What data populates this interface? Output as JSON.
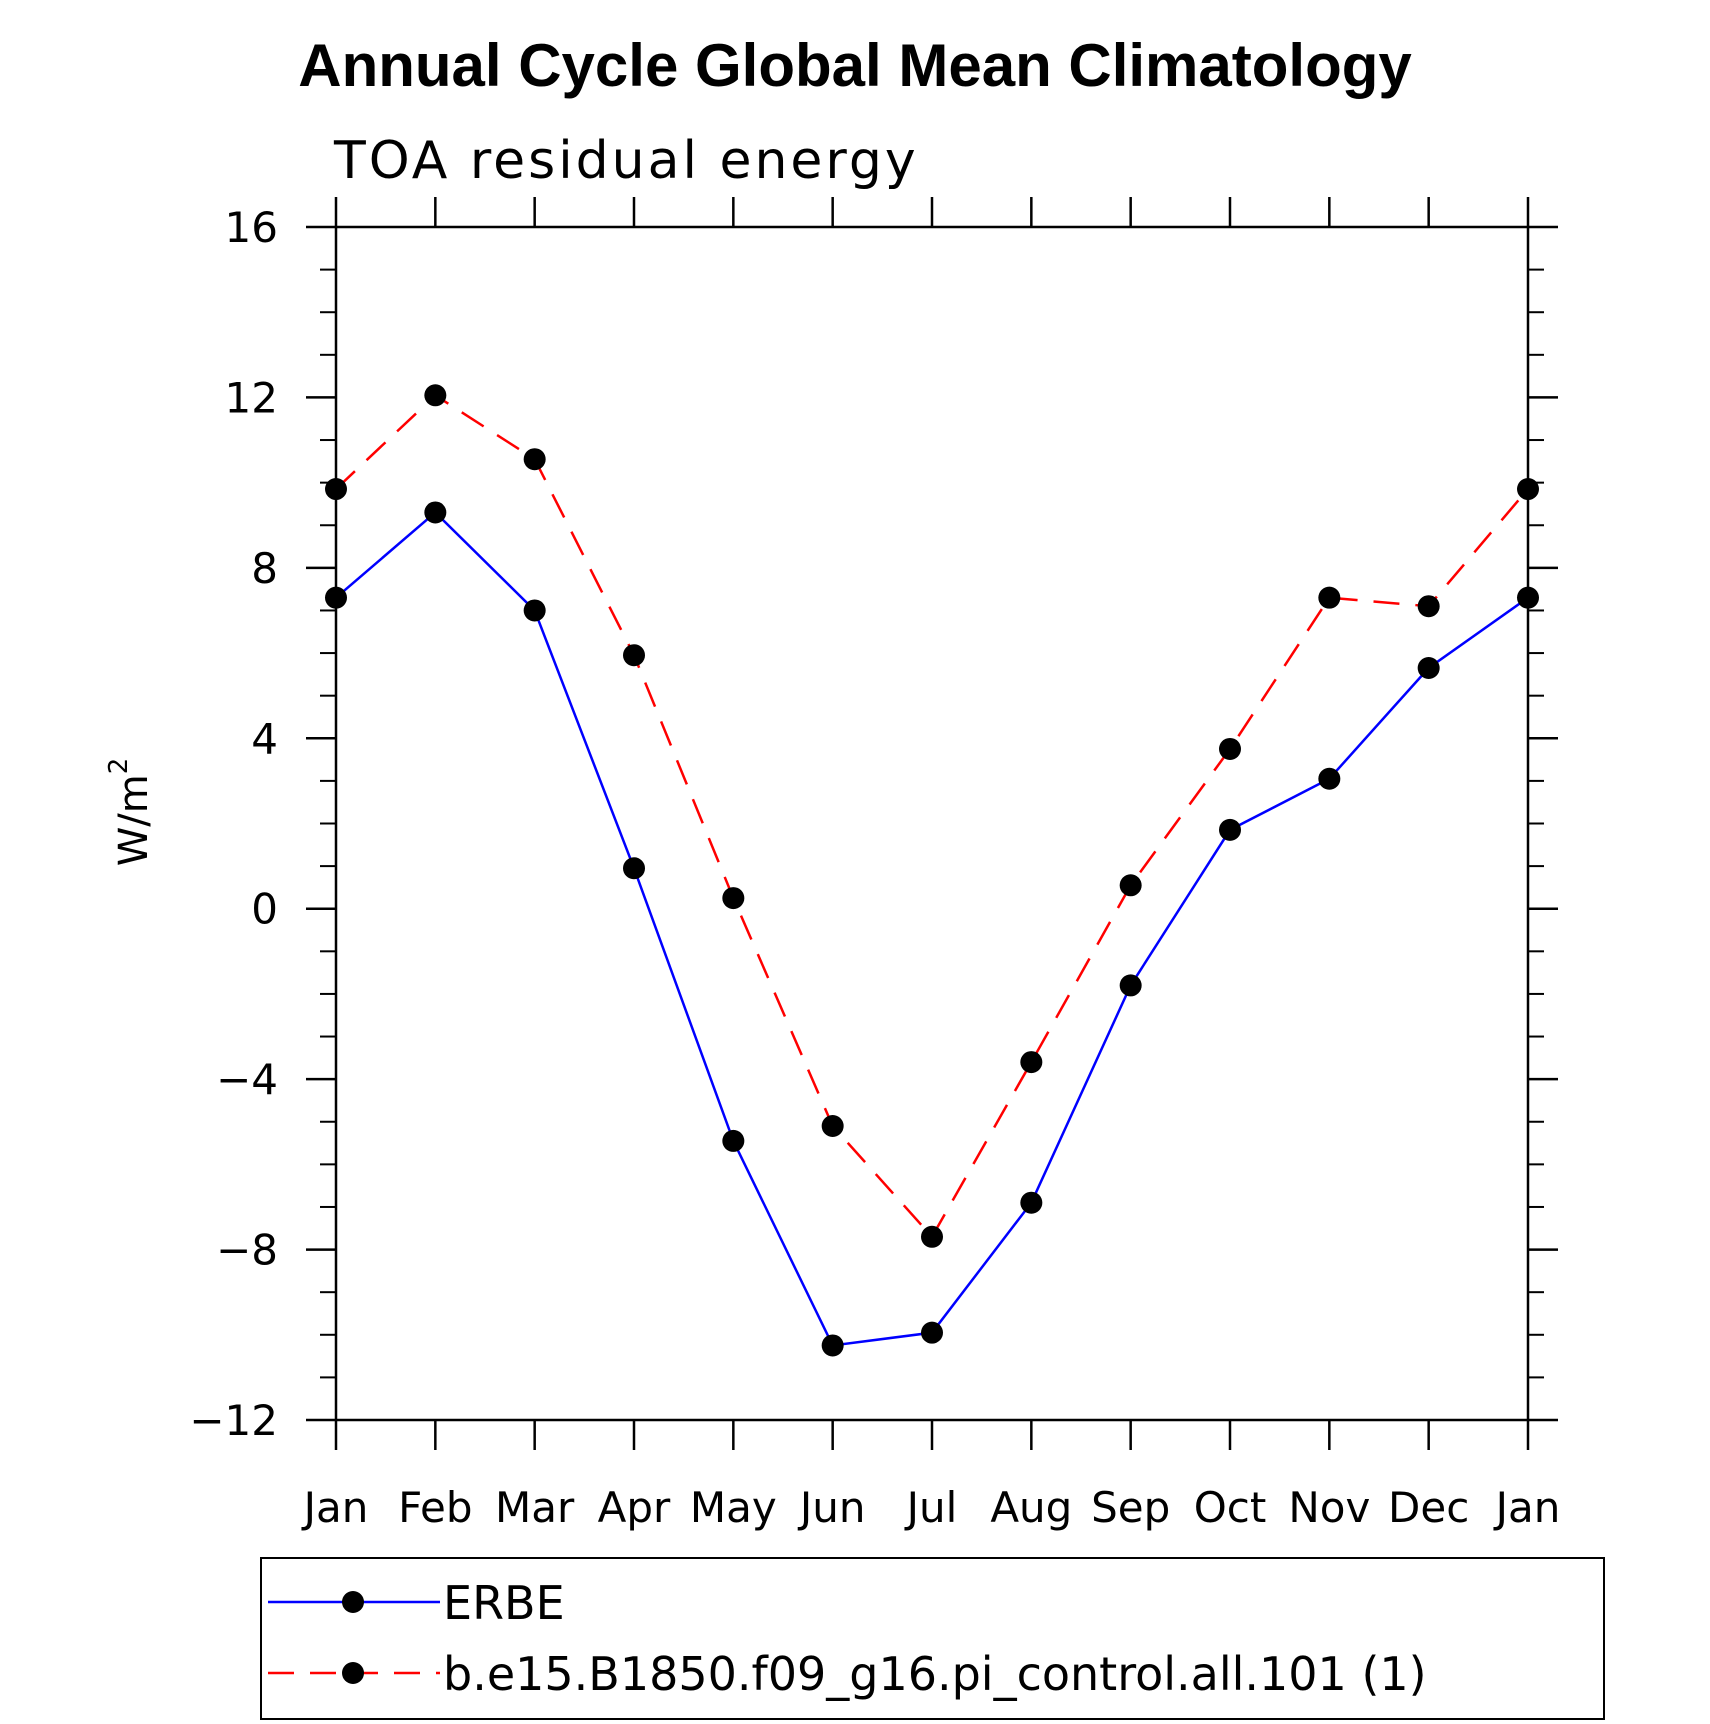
{
  "colors": {
    "series_0": "#0000ff",
    "series_1": "#ff0000",
    "marker": "#000000",
    "axis": "#000000"
  },
  "chart_data": {
    "type": "line",
    "title": "Annual Cycle Global Mean Climatology",
    "subtitle": "TOA residual energy",
    "xlabel": "",
    "ylabel": "W/m",
    "ylabel_superscript": "2",
    "categories": [
      "Jan",
      "Feb",
      "Mar",
      "Apr",
      "May",
      "Jun",
      "Jul",
      "Aug",
      "Sep",
      "Oct",
      "Nov",
      "Dec",
      "Jan"
    ],
    "ylim": [
      -12,
      16
    ],
    "yticks": [
      16,
      12,
      8,
      4,
      0,
      -4,
      -8,
      -12
    ],
    "ytick_labels": [
      "16",
      "12",
      "8",
      "4",
      "0",
      "−4",
      "−8",
      "−12"
    ],
    "yminor_step": 1,
    "grid": false,
    "legend_placement": "bottom",
    "series": [
      {
        "name": "ERBE",
        "style": "solid",
        "values": [
          7.3,
          9.3,
          7.0,
          0.95,
          -5.45,
          -10.25,
          -9.95,
          -6.9,
          -1.8,
          1.85,
          3.05,
          5.65,
          7.3
        ]
      },
      {
        "name": "b.e15.B1850.f09_g16.pi_control.all.101 (1)",
        "style": "dashed",
        "values": [
          9.85,
          12.05,
          10.55,
          5.95,
          0.25,
          -5.1,
          -7.7,
          -3.6,
          0.55,
          3.75,
          7.3,
          7.1,
          9.85
        ]
      }
    ]
  }
}
